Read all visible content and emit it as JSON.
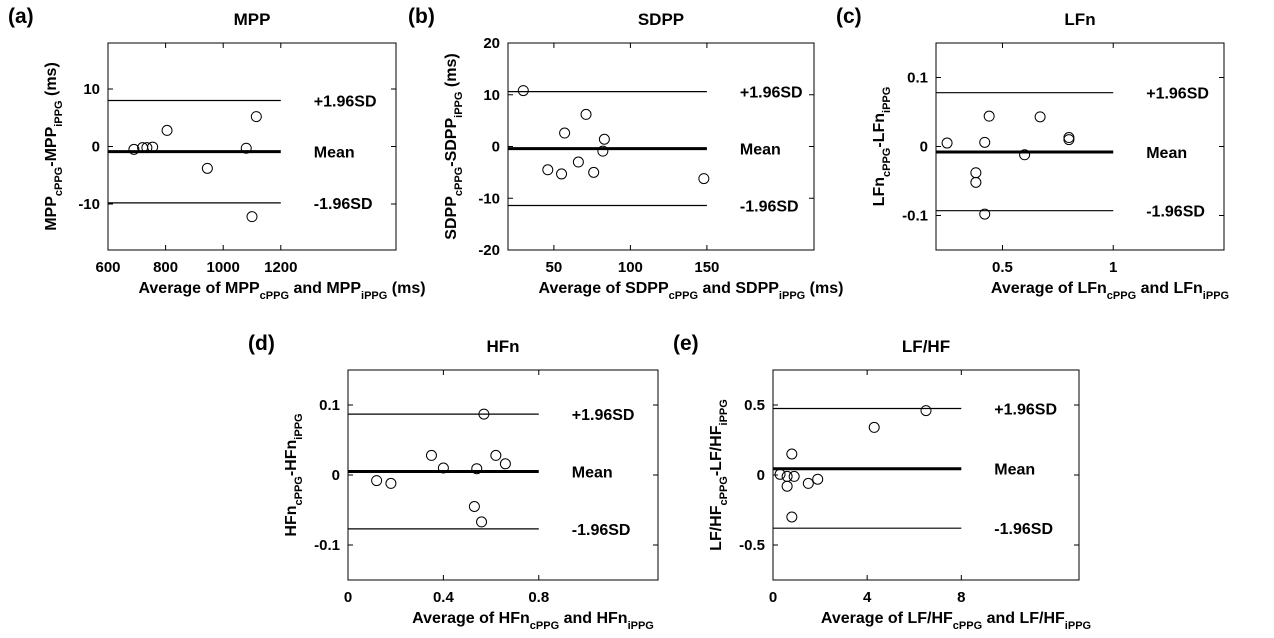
{
  "chart_data": [
    {
      "type": "scatter",
      "panel": "(a)",
      "title": "MPP",
      "xlabel": {
        "parts": [
          [
            "Average of MPP",
            ""
          ],
          [
            "cPPG",
            "sub"
          ],
          [
            " and MPP",
            ""
          ],
          [
            "iPPG",
            "sub"
          ],
          [
            " (ms)",
            ""
          ]
        ]
      },
      "ylabel": {
        "parts": [
          [
            "MPP",
            ""
          ],
          [
            "cPPG",
            "sub"
          ],
          [
            "-MPP",
            ""
          ],
          [
            "iPPG",
            "sub"
          ],
          [
            " (ms)",
            ""
          ]
        ]
      },
      "xlim": [
        600,
        1600
      ],
      "ylim": [
        -18,
        18
      ],
      "xticks": [
        600,
        800,
        1000,
        1200
      ],
      "yticks": [
        -10,
        0,
        10
      ],
      "x": [
        690,
        720,
        735,
        755,
        805,
        945,
        1080,
        1100,
        1115
      ],
      "y": [
        -0.5,
        -0.2,
        -0.2,
        -0.1,
        2.8,
        -3.8,
        -0.3,
        -12.2,
        5.2
      ],
      "mean": -0.9,
      "upper": 8.0,
      "lower": -9.8,
      "line_end": 1200,
      "limit_labels": [
        "+1.96SD",
        "Mean",
        "-1.96SD"
      ]
    },
    {
      "type": "scatter",
      "panel": "(b)",
      "title": "SDPP",
      "xlabel": {
        "parts": [
          [
            "Average of SDPP",
            ""
          ],
          [
            "cPPG",
            "sub"
          ],
          [
            " and SDPP",
            ""
          ],
          [
            "iPPG",
            "sub"
          ],
          [
            " (ms)",
            ""
          ]
        ]
      },
      "ylabel": {
        "parts": [
          [
            "SDPP",
            ""
          ],
          [
            "cPPG",
            "sub"
          ],
          [
            "-SDPP",
            ""
          ],
          [
            "iPPG",
            "sub"
          ],
          [
            " (ms)",
            ""
          ]
        ]
      },
      "xlim": [
        20,
        220
      ],
      "ylim": [
        -20,
        20
      ],
      "xticks": [
        50,
        100,
        150
      ],
      "yticks": [
        -20,
        -10,
        0,
        10,
        20
      ],
      "x": [
        30,
        46,
        55,
        57,
        66,
        71,
        76,
        82,
        83,
        148
      ],
      "y": [
        10.8,
        -4.5,
        -5.3,
        2.6,
        -3.0,
        6.2,
        -5.0,
        -0.9,
        1.4,
        -6.2
      ],
      "mean": -0.4,
      "upper": 10.6,
      "lower": -11.4,
      "line_end": 150,
      "limit_labels": [
        "+1.96SD",
        "Mean",
        "-1.96SD"
      ]
    },
    {
      "type": "scatter",
      "panel": "(c)",
      "title": "LFn",
      "xlabel": {
        "parts": [
          [
            "Average of LFn",
            ""
          ],
          [
            "cPPG",
            "sub"
          ],
          [
            " and LFn",
            ""
          ],
          [
            "iPPG",
            "sub"
          ]
        ]
      },
      "ylabel": {
        "parts": [
          [
            "LFn",
            ""
          ],
          [
            "cPPG",
            "sub"
          ],
          [
            "-LFn",
            ""
          ],
          [
            "iPPG",
            "sub"
          ]
        ]
      },
      "xlim": [
        0.2,
        1.5
      ],
      "ylim": [
        -0.15,
        0.15
      ],
      "xticks": [
        0.5,
        1
      ],
      "xtick_labels": [
        "0.5",
        "1"
      ],
      "yticks": [
        -0.1,
        0,
        0.1
      ],
      "ytick_labels": [
        "-0.1",
        "0",
        "0.1"
      ],
      "x": [
        0.25,
        0.38,
        0.38,
        0.42,
        0.42,
        0.44,
        0.6,
        0.67,
        0.8,
        0.8
      ],
      "y": [
        0.005,
        -0.038,
        -0.052,
        -0.098,
        0.006,
        0.044,
        -0.012,
        0.043,
        0.01,
        0.013
      ],
      "mean": -0.008,
      "upper": 0.078,
      "lower": -0.093,
      "line_end": 1.0,
      "limit_labels": [
        "+1.96SD",
        "Mean",
        "-1.96SD"
      ]
    },
    {
      "type": "scatter",
      "panel": "(d)",
      "title": "HFn",
      "xlabel": {
        "parts": [
          [
            "Average of HFn",
            ""
          ],
          [
            "cPPG",
            "sub"
          ],
          [
            " and HFn",
            ""
          ],
          [
            "iPPG",
            "sub"
          ]
        ]
      },
      "ylabel": {
        "parts": [
          [
            "HFn",
            ""
          ],
          [
            "cPPG",
            "sub"
          ],
          [
            "-HFn",
            ""
          ],
          [
            "iPPG",
            "sub"
          ]
        ]
      },
      "xlim": [
        0,
        1.3
      ],
      "ylim": [
        -0.15,
        0.15
      ],
      "xticks": [
        0,
        0.4,
        0.8
      ],
      "xtick_labels": [
        "0",
        "0.4",
        "0.8"
      ],
      "yticks": [
        -0.1,
        0,
        0.1
      ],
      "ytick_labels": [
        "-0.1",
        "0",
        "0.1"
      ],
      "x": [
        0.12,
        0.18,
        0.35,
        0.4,
        0.53,
        0.54,
        0.56,
        0.57,
        0.62,
        0.66
      ],
      "y": [
        -0.008,
        -0.012,
        0.028,
        0.01,
        -0.045,
        0.009,
        -0.067,
        0.087,
        0.028,
        0.016
      ],
      "mean": 0.005,
      "upper": 0.087,
      "lower": -0.077,
      "line_end": 0.8,
      "limit_labels": [
        "+1.96SD",
        "Mean",
        "-1.96SD"
      ]
    },
    {
      "type": "scatter",
      "panel": "(e)",
      "title": "LF/HF",
      "xlabel": {
        "parts": [
          [
            "Average of LF/HF",
            ""
          ],
          [
            "cPPG",
            "sub"
          ],
          [
            " and LF/HF",
            ""
          ],
          [
            "iPPG",
            "sub"
          ]
        ]
      },
      "ylabel": {
        "parts": [
          [
            "LF/HF",
            ""
          ],
          [
            "cPPG",
            "sub"
          ],
          [
            "-LF/HF",
            ""
          ],
          [
            "iPPG",
            "sub"
          ]
        ]
      },
      "xlim": [
        0,
        13
      ],
      "ylim": [
        -0.75,
        0.75
      ],
      "xticks": [
        0,
        4,
        8
      ],
      "xtick_labels": [
        "0",
        "4",
        "8"
      ],
      "yticks": [
        -0.5,
        0,
        0.5
      ],
      "ytick_labels": [
        "-0.5",
        "0",
        "0.5"
      ],
      "x": [
        0.3,
        0.6,
        0.6,
        0.8,
        0.8,
        0.9,
        1.5,
        1.9,
        4.3,
        6.5
      ],
      "y": [
        0.005,
        -0.08,
        -0.01,
        0.15,
        -0.3,
        -0.01,
        -0.06,
        -0.03,
        0.34,
        0.46
      ],
      "mean": 0.045,
      "upper": 0.475,
      "lower": -0.38,
      "line_end": 8,
      "limit_labels": [
        "+1.96SD",
        "Mean",
        "-1.96SD"
      ]
    }
  ]
}
